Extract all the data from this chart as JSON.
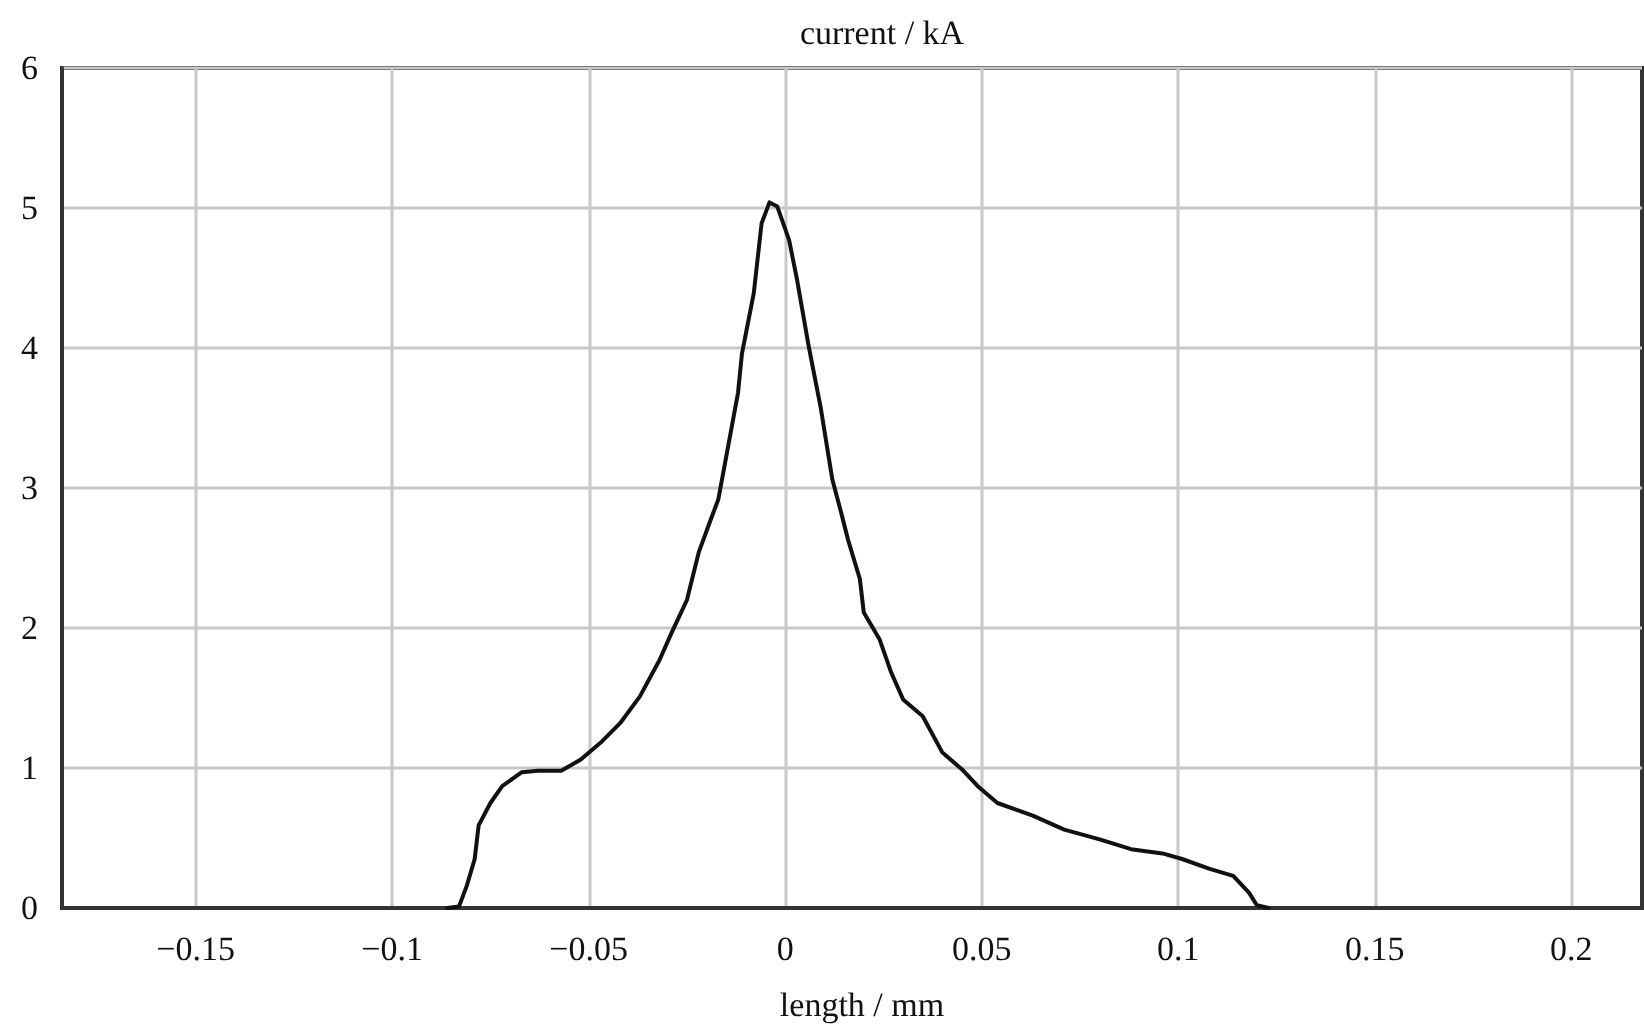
{
  "chart_data": {
    "type": "line",
    "title": "current / kA",
    "xlabel": "length / mm",
    "x": [
      -0.086,
      -0.083,
      -0.081,
      -0.079,
      -0.078,
      -0.075,
      -0.072,
      -0.067,
      -0.063,
      -0.057,
      -0.052,
      -0.047,
      -0.042,
      -0.037,
      -0.032,
      -0.029,
      -0.025,
      -0.022,
      -0.019,
      -0.017,
      -0.012,
      -0.011,
      -0.008,
      -0.006,
      -0.004,
      -0.002,
      0.001,
      0.003,
      0.006,
      0.009,
      0.012,
      0.014,
      0.016,
      0.019,
      0.02,
      0.024,
      0.027,
      0.03,
      0.035,
      0.04,
      0.045,
      0.049,
      0.054,
      0.063,
      0.071,
      0.08,
      0.088,
      0.096,
      0.101,
      0.108,
      0.114,
      0.118,
      0.12,
      0.123
    ],
    "series": [
      {
        "color": "#111111",
        "values": [
          0,
          0.01,
          0.16,
          0.35,
          0.59,
          0.75,
          0.87,
          0.97,
          0.98,
          0.98,
          1.06,
          1.18,
          1.32,
          1.51,
          1.77,
          1.96,
          2.2,
          2.54,
          2.77,
          2.92,
          3.68,
          3.96,
          4.39,
          4.89,
          5.04,
          5.01,
          4.77,
          4.49,
          4.01,
          3.58,
          3.06,
          2.85,
          2.63,
          2.35,
          2.11,
          1.92,
          1.68,
          1.49,
          1.37,
          1.11,
          0.99,
          0.87,
          0.75,
          0.66,
          0.56,
          0.49,
          0.42,
          0.39,
          0.35,
          0.28,
          0.23,
          0.11,
          0.02,
          0
        ]
      }
    ],
    "xlim": [
      -0.184,
      0.218
    ],
    "xticks": [
      -0.15,
      -0.1,
      -0.05,
      0,
      0.05,
      0.1,
      0.15,
      0.2
    ],
    "ylim": [
      0,
      6
    ],
    "yticks": [
      0,
      1,
      2,
      3,
      4,
      5,
      6
    ],
    "grid": true
  }
}
